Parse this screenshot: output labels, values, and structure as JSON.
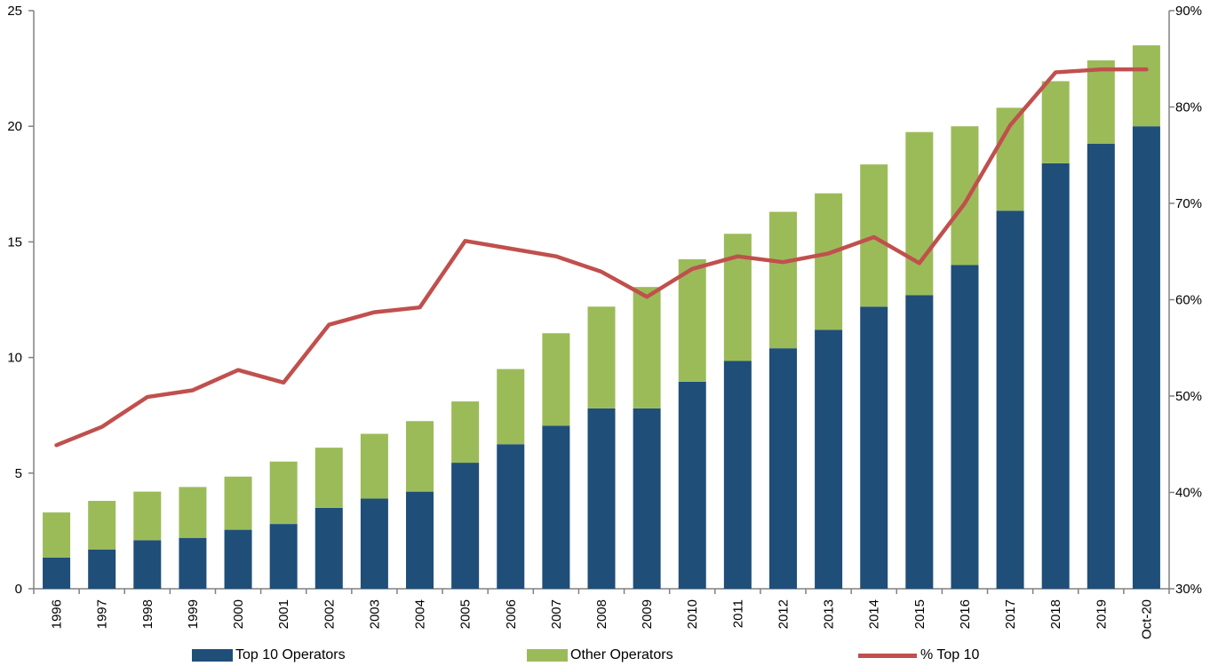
{
  "chart_data": {
    "type": "bar",
    "stacked": true,
    "categories": [
      "1996",
      "1997",
      "1998",
      "1999",
      "2000",
      "2001",
      "2002",
      "2003",
      "2004",
      "2005",
      "2006",
      "2007",
      "2008",
      "2009",
      "2010",
      "2011",
      "2012",
      "2013",
      "2014",
      "2015",
      "2016",
      "2017",
      "2018",
      "2019",
      "Oct-20"
    ],
    "series": [
      {
        "name": "Top 10 Operators",
        "type": "bar",
        "axis": "left",
        "color": "#1f4e79",
        "values": [
          1.35,
          1.7,
          2.1,
          2.2,
          2.55,
          2.8,
          3.5,
          3.9,
          4.2,
          5.45,
          6.25,
          7.05,
          7.8,
          7.8,
          8.95,
          9.85,
          10.4,
          11.2,
          12.2,
          12.7,
          14.0,
          16.35,
          18.4,
          19.25,
          20.0
        ]
      },
      {
        "name": "Other Operators",
        "type": "bar",
        "axis": "left",
        "color": "#9bbb59",
        "values": [
          1.95,
          2.1,
          2.1,
          2.2,
          2.3,
          2.7,
          2.6,
          2.8,
          3.05,
          2.65,
          3.25,
          4.0,
          4.4,
          5.25,
          5.3,
          5.5,
          5.9,
          5.9,
          6.15,
          7.05,
          6.0,
          4.45,
          3.55,
          3.6,
          3.5
        ]
      },
      {
        "name": "% Top 10",
        "type": "line",
        "axis": "right",
        "color": "#c0504d",
        "values": [
          44.9,
          46.8,
          49.9,
          50.6,
          52.7,
          51.4,
          57.4,
          58.7,
          59.2,
          66.1,
          65.3,
          64.5,
          62.9,
          60.3,
          63.2,
          64.5,
          63.9,
          64.8,
          66.5,
          63.8,
          70.0,
          78.1,
          83.6,
          83.9,
          83.9
        ]
      }
    ],
    "y_left": {
      "min": 0,
      "max": 25,
      "ticks": [
        0,
        5,
        10,
        15,
        20,
        25
      ],
      "tick_labels": [
        "0",
        "5",
        "10",
        "15",
        "20",
        "25"
      ]
    },
    "y_right": {
      "min": 30,
      "max": 90,
      "ticks": [
        30,
        40,
        50,
        60,
        70,
        80,
        90
      ],
      "tick_labels": [
        "30%",
        "40%",
        "50%",
        "60%",
        "70%",
        "80%",
        "90%"
      ]
    },
    "title": "",
    "xlabel": "",
    "ylabel": "",
    "grid": false,
    "legend_position": "bottom"
  }
}
